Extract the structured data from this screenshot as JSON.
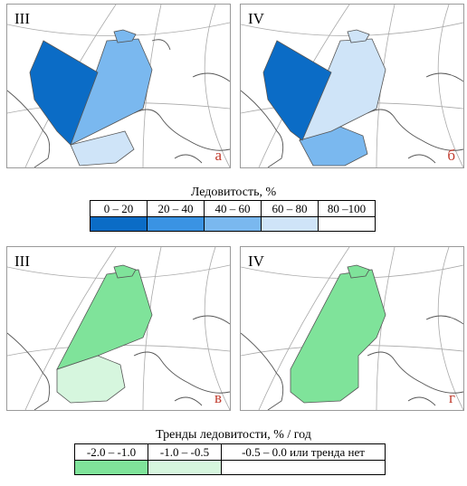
{
  "panels": [
    {
      "month": "III",
      "letter": "а"
    },
    {
      "month": "IV",
      "letter": "б"
    },
    {
      "month": "III",
      "letter": "в"
    },
    {
      "month": "IV",
      "letter": "г"
    }
  ],
  "ice_legend": {
    "title": "Ледовитость, %",
    "classes": [
      {
        "label": "0  – 20",
        "color": "#0b6cc6"
      },
      {
        "label": "20 – 40",
        "color": "#3a93e3"
      },
      {
        "label": "40 – 60",
        "color": "#7ab8ef"
      },
      {
        "label": "60 – 80",
        "color": "#cfe4f8"
      },
      {
        "label": "80 –100",
        "color": "#ffffff"
      }
    ]
  },
  "trend_legend": {
    "title": "Тренды ледовитости, % / год",
    "classes": [
      {
        "label": "-2.0 – -1.0",
        "color": "#7fe39a"
      },
      {
        "label": "-1.0 – -0.5",
        "color": "#d6f6de"
      },
      {
        "label": "-0.5 – 0.0 или тренда нет",
        "color": "#ffffff"
      }
    ]
  }
}
